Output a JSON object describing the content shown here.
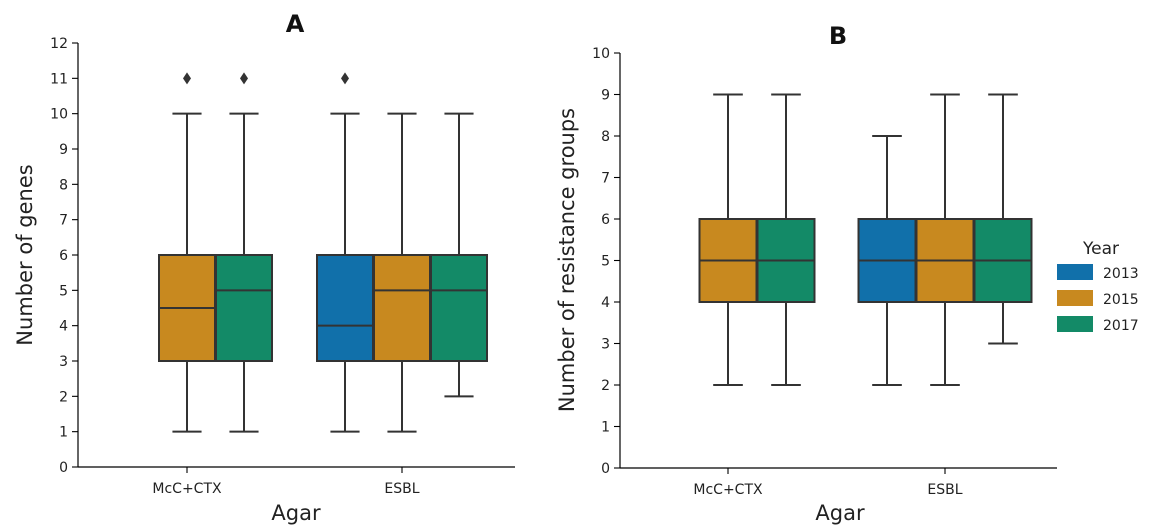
{
  "colors": {
    "2013": "#1170aa",
    "2015": "#c8891f",
    "2017": "#138a67"
  },
  "legend": {
    "title": "Year",
    "items": [
      "2013",
      "2015",
      "2017"
    ]
  },
  "chart_data": [
    {
      "type": "box",
      "panel": "A",
      "title": "A",
      "xlabel": "Agar",
      "ylabel": "Number of genes",
      "ylim": [
        0,
        12
      ],
      "yticks": [
        0,
        1,
        2,
        3,
        4,
        5,
        6,
        7,
        8,
        9,
        10,
        11,
        12
      ],
      "categories": [
        "McC+CTX",
        "ESBL"
      ],
      "boxes": [
        {
          "category": "McC+CTX",
          "year": "2015",
          "whislo": 1,
          "q1": 3,
          "med": 4.5,
          "q3": 6,
          "whishi": 10,
          "fliers": [
            11
          ]
        },
        {
          "category": "McC+CTX",
          "year": "2017",
          "whislo": 1,
          "q1": 3,
          "med": 5,
          "q3": 6,
          "whishi": 10,
          "fliers": [
            11
          ]
        },
        {
          "category": "ESBL",
          "year": "2013",
          "whislo": 1,
          "q1": 3,
          "med": 4,
          "q3": 6,
          "whishi": 10,
          "fliers": [
            11
          ]
        },
        {
          "category": "ESBL",
          "year": "2015",
          "whislo": 1,
          "q1": 3,
          "med": 5,
          "q3": 6,
          "whishi": 10,
          "fliers": []
        },
        {
          "category": "ESBL",
          "year": "2017",
          "whislo": 2,
          "q1": 3,
          "med": 5,
          "q3": 6,
          "whishi": 10,
          "fliers": []
        }
      ]
    },
    {
      "type": "box",
      "panel": "B",
      "title": "B",
      "xlabel": "Agar",
      "ylabel": "Number of resistance groups",
      "ylim": [
        0,
        10
      ],
      "yticks": [
        0,
        1,
        2,
        3,
        4,
        5,
        6,
        7,
        8,
        9,
        10
      ],
      "categories": [
        "McC+CTX",
        "ESBL"
      ],
      "boxes": [
        {
          "category": "McC+CTX",
          "year": "2015",
          "whislo": 2,
          "q1": 4,
          "med": 5,
          "q3": 6,
          "whishi": 9,
          "fliers": []
        },
        {
          "category": "McC+CTX",
          "year": "2017",
          "whislo": 2,
          "q1": 4,
          "med": 5,
          "q3": 6,
          "whishi": 9,
          "fliers": []
        },
        {
          "category": "ESBL",
          "year": "2013",
          "whislo": 2,
          "q1": 4,
          "med": 5,
          "q3": 6,
          "whishi": 8,
          "fliers": []
        },
        {
          "category": "ESBL",
          "year": "2015",
          "whislo": 2,
          "q1": 4,
          "med": 5,
          "q3": 6,
          "whishi": 9,
          "fliers": []
        },
        {
          "category": "ESBL",
          "year": "2017",
          "whislo": 3,
          "q1": 4,
          "med": 5,
          "q3": 6,
          "whishi": 9,
          "fliers": []
        }
      ]
    }
  ]
}
